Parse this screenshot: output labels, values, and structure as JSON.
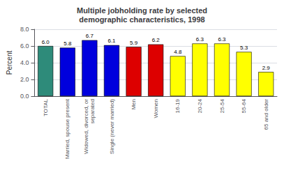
{
  "chart_data": {
    "type": "bar",
    "title": "Multiple jobholding rate by selected\ndemographic characteristics, 1998",
    "categories": [
      "TOTAL",
      "Married, spouse present",
      "Widowed, divorced, or\nseparated",
      "Single (never married)",
      "Men",
      "Women",
      "16-19",
      "20-24",
      "25-54",
      "55-64",
      "65 and older"
    ],
    "values": [
      6.0,
      5.8,
      6.7,
      6.1,
      5.9,
      6.2,
      4.8,
      6.3,
      6.3,
      5.3,
      2.9
    ],
    "value_labels": [
      "6.0",
      "5.8",
      "6.7",
      "6.1",
      "5.9",
      "6.2",
      "4.8",
      "6.3",
      "6.3",
      "5.3",
      "2.9"
    ],
    "colors": [
      "#2e8b7a",
      "#0000dd",
      "#0000dd",
      "#0000dd",
      "#dd0000",
      "#dd0000",
      "#ffff00",
      "#ffff00",
      "#ffff00",
      "#ffff00",
      "#ffff00"
    ],
    "ylabel": "Percent",
    "ylim": [
      0.0,
      8.0
    ],
    "yticks": [
      {
        "value": 0,
        "label": "0.0"
      },
      {
        "value": 2,
        "label": "2.0"
      },
      {
        "value": 4,
        "label": "4.0"
      },
      {
        "value": 6,
        "label": "6.0"
      },
      {
        "value": 8,
        "label": "8.0"
      }
    ],
    "grid": true,
    "data_labels": true
  }
}
